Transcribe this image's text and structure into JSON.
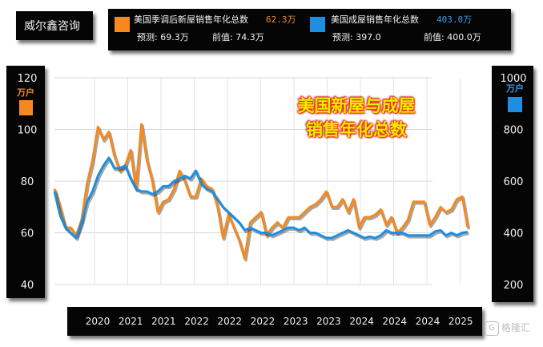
{
  "brand": "威尔鑫咨询",
  "legend": {
    "series1": {
      "name": "美国季调后新屋销售年化总数",
      "value": "62.3万",
      "forecast": "预测: 69.3万",
      "previous": "前值: 74.3万"
    },
    "series2": {
      "name": "美国成屋销售年化总数",
      "value": "403.0万",
      "forecast": "预测: 397.0",
      "previous": "前值: 400.0万"
    }
  },
  "title_line1": "美国新屋与成屋",
  "title_line2": "销售年化总数",
  "watermark": "格隆汇",
  "colors": {
    "series1": "#f5891f",
    "series2": "#1e8fe0",
    "value1": "#f5891f",
    "value2": "#3a9ae6"
  },
  "chart_data": {
    "type": "line",
    "x_tick_labels": [
      "2020",
      "2021",
      "2021",
      "2022",
      "2022",
      "2022",
      "2023",
      "2023",
      "2024",
      "2024",
      "2024",
      "2025"
    ],
    "left_axis": {
      "unit": "万户",
      "ticks": [
        "120",
        "100",
        "80",
        "60",
        "40"
      ],
      "ylim": [
        40,
        120
      ]
    },
    "right_axis": {
      "unit": "万户",
      "ticks": [
        "1000",
        "800",
        "600",
        "400",
        "200"
      ],
      "ylim": [
        200,
        1000
      ]
    },
    "series": [
      {
        "name": "美国季调后新屋销售年化总数",
        "axis": "left",
        "values": [
          77,
          70,
          62,
          62,
          59,
          65,
          79,
          88,
          101,
          96,
          99,
          90,
          84,
          86,
          92,
          77,
          102,
          88,
          80,
          68,
          72,
          73,
          77,
          84,
          80,
          74,
          74,
          81,
          78,
          77,
          70,
          58,
          67,
          62,
          57,
          50,
          64,
          66,
          68,
          59,
          62,
          64,
          62,
          66,
          66,
          66,
          68,
          70,
          71,
          73,
          76,
          70,
          70,
          73,
          68,
          73,
          62,
          66,
          66,
          67,
          69,
          63,
          66,
          60,
          62,
          65,
          72,
          72,
          72,
          63,
          66,
          70,
          68,
          69,
          73,
          74,
          62
        ]
      },
      {
        "name": "美国成屋销售年化总数",
        "axis": "right",
        "values": [
          560,
          470,
          420,
          400,
          380,
          440,
          520,
          560,
          620,
          660,
          690,
          650,
          650,
          660,
          610,
          570,
          560,
          560,
          550,
          560,
          580,
          580,
          600,
          610,
          620,
          610,
          640,
          590,
          570,
          560,
          530,
          500,
          480,
          460,
          440,
          410,
          420,
          410,
          400,
          400,
          390,
          400,
          410,
          420,
          420,
          410,
          420,
          400,
          400,
          390,
          380,
          380,
          390,
          400,
          410,
          400,
          390,
          380,
          385,
          380,
          390,
          410,
          400,
          400,
          400,
          390,
          390,
          390,
          390,
          390,
          405,
          410,
          390,
          400,
          390,
          400,
          403
        ]
      }
    ]
  }
}
